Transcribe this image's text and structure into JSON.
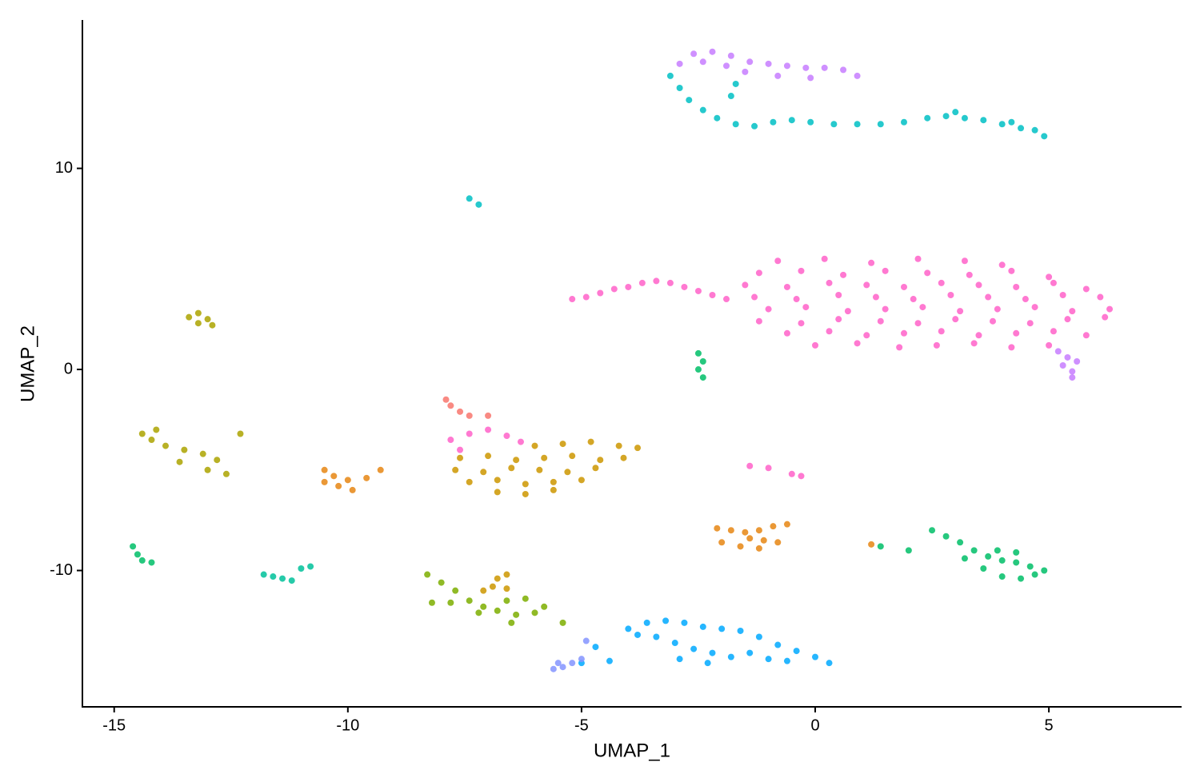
{
  "chart_data": {
    "type": "scatter",
    "x_label": "UMAP_1",
    "y_label": "UMAP_2",
    "xlim": [
      -15.68,
      7.84
    ],
    "ylim": [
      -16.78,
      17.38
    ],
    "xticks": [
      -15,
      -10,
      -5,
      0,
      5
    ],
    "yticks": [
      -10,
      0,
      10
    ],
    "grid": false,
    "series": [
      {
        "color": "#FF61C9",
        "x": [
          -5.2,
          -4.9,
          -4.6,
          -4.3,
          -4.0,
          -3.7,
          -3.4,
          -3.1,
          -2.8,
          -2.5,
          -2.2,
          -1.9,
          -0.8,
          0.2,
          1.2,
          2.2,
          3.2,
          4.0,
          -1.2,
          -0.3,
          0.6,
          1.5,
          2.4,
          3.3,
          4.2,
          5.0,
          -1.5,
          -0.6,
          0.3,
          1.1,
          1.9,
          2.7,
          3.5,
          4.3,
          5.1,
          5.8,
          -1.3,
          -0.4,
          0.5,
          1.3,
          2.1,
          2.9,
          3.7,
          4.5,
          5.3,
          6.1,
          -1.0,
          -0.2,
          0.7,
          1.5,
          2.3,
          3.1,
          3.9,
          4.7,
          5.5,
          6.3,
          -1.2,
          -0.3,
          0.5,
          1.4,
          2.2,
          3.0,
          3.8,
          4.6,
          5.4,
          6.2,
          -0.6,
          0.3,
          1.1,
          1.9,
          2.7,
          3.5,
          4.3,
          5.1,
          5.8,
          0.0,
          0.9,
          1.8,
          2.6,
          3.4,
          4.2,
          5.0,
          -7.8,
          -7.4,
          -7.0,
          -6.6,
          -6.3,
          -7.6,
          -1.4,
          -1.0,
          -0.5,
          -0.3
        ],
        "y": [
          3.5,
          3.6,
          3.8,
          4.0,
          4.1,
          4.3,
          4.4,
          4.3,
          4.1,
          3.9,
          3.7,
          3.5,
          5.4,
          5.5,
          5.3,
          5.5,
          5.4,
          5.2,
          4.8,
          4.9,
          4.7,
          4.9,
          4.8,
          4.7,
          4.9,
          4.6,
          4.2,
          4.1,
          4.3,
          4.2,
          4.1,
          4.3,
          4.2,
          4.1,
          4.3,
          4.0,
          3.6,
          3.5,
          3.7,
          3.6,
          3.5,
          3.7,
          3.6,
          3.5,
          3.7,
          3.6,
          3.0,
          3.1,
          2.9,
          3.0,
          3.1,
          2.9,
          3.0,
          3.1,
          2.9,
          3.0,
          2.4,
          2.3,
          2.5,
          2.4,
          2.3,
          2.5,
          2.4,
          2.3,
          2.5,
          2.6,
          1.8,
          1.9,
          1.7,
          1.8,
          1.9,
          1.7,
          1.8,
          1.9,
          1.7,
          1.2,
          1.3,
          1.1,
          1.2,
          1.3,
          1.1,
          1.2,
          -3.5,
          -3.2,
          -3.0,
          -3.3,
          -3.6,
          -4.0,
          -4.8,
          -4.9,
          -5.2,
          -5.3
        ]
      },
      {
        "color": "#C77CFF",
        "x": [
          -2.9,
          -2.6,
          -2.2,
          -1.8,
          -1.4,
          -1.0,
          -0.6,
          -0.2,
          0.2,
          0.6,
          0.9,
          -1.5,
          -0.8,
          -0.1,
          -2.4,
          -1.9,
          5.3,
          5.5,
          5.4,
          5.6,
          5.2,
          5.5
        ],
        "y": [
          15.2,
          15.7,
          15.8,
          15.6,
          15.3,
          15.2,
          15.1,
          15.0,
          15.0,
          14.9,
          14.6,
          14.8,
          14.6,
          14.5,
          15.3,
          15.1,
          0.2,
          -0.1,
          0.6,
          0.4,
          0.9,
          -0.4
        ]
      },
      {
        "color": "#00BFC4",
        "x": [
          -3.1,
          -2.9,
          -2.7,
          -2.4,
          -2.1,
          -1.7,
          -1.3,
          -0.9,
          -0.5,
          -0.1,
          0.4,
          0.9,
          1.4,
          1.9,
          2.4,
          2.8,
          3.2,
          3.6,
          4.0,
          4.4,
          4.7,
          4.9,
          3.0,
          4.2,
          -1.8,
          -1.7,
          -7.4,
          -7.2
        ],
        "y": [
          14.6,
          14.0,
          13.4,
          12.9,
          12.5,
          12.2,
          12.1,
          12.3,
          12.4,
          12.3,
          12.2,
          12.2,
          12.2,
          12.3,
          12.5,
          12.6,
          12.5,
          12.4,
          12.2,
          12.0,
          11.9,
          11.6,
          12.8,
          12.3,
          13.6,
          14.2,
          8.5,
          8.2
        ]
      },
      {
        "color": "#00A9FF",
        "x": [
          -4.0,
          -3.6,
          -3.2,
          -2.8,
          -2.4,
          -2.0,
          -1.6,
          -1.2,
          -0.8,
          -0.4,
          0.0,
          0.3,
          -3.4,
          -3.0,
          -2.6,
          -2.2,
          -1.8,
          -1.4,
          -1.0,
          -0.6,
          -3.8,
          -2.9,
          -2.3,
          -4.4,
          -5.0,
          -4.7
        ],
        "y": [
          -12.9,
          -12.6,
          -12.5,
          -12.6,
          -12.8,
          -12.9,
          -13.0,
          -13.3,
          -13.7,
          -14.0,
          -14.3,
          -14.6,
          -13.3,
          -13.6,
          -13.9,
          -14.1,
          -14.3,
          -14.1,
          -14.4,
          -14.5,
          -13.2,
          -14.4,
          -14.6,
          -14.5,
          -14.6,
          -13.8
        ]
      },
      {
        "color": "#8494FF",
        "x": [
          -5.6,
          -5.4,
          -5.2,
          -5.0,
          -5.5,
          -4.9
        ],
        "y": [
          -14.9,
          -14.8,
          -14.6,
          -14.4,
          -14.6,
          -13.5
        ]
      },
      {
        "color": "#E68613",
        "x": [
          -10.5,
          -10.3,
          -10.5,
          -10.2,
          -9.9,
          -10.0,
          -9.6,
          -9.3,
          -2.1,
          -1.8,
          -1.5,
          -1.2,
          -0.9,
          -0.6,
          -2.0,
          -1.6,
          -1.2,
          -0.8,
          -1.4,
          -1.1,
          1.2
        ],
        "y": [
          -5.0,
          -5.3,
          -5.6,
          -5.8,
          -6.0,
          -5.5,
          -5.4,
          -5.0,
          -7.9,
          -8.0,
          -8.1,
          -8.0,
          -7.8,
          -7.7,
          -8.6,
          -8.8,
          -8.9,
          -8.6,
          -8.4,
          -8.5,
          -8.7
        ]
      },
      {
        "color": "#CD9600",
        "x": [
          -6.0,
          -5.4,
          -4.8,
          -4.2,
          -3.8,
          -7.6,
          -7.0,
          -6.4,
          -5.8,
          -5.2,
          -4.6,
          -4.1,
          -7.7,
          -7.1,
          -6.5,
          -5.9,
          -5.3,
          -4.7,
          -7.4,
          -6.8,
          -6.2,
          -5.6,
          -5.0,
          -6.8,
          -6.2,
          -5.6,
          -6.8,
          -6.6,
          -6.9,
          -6.6,
          -7.1
        ],
        "y": [
          -3.8,
          -3.7,
          -3.6,
          -3.8,
          -3.9,
          -4.4,
          -4.3,
          -4.5,
          -4.4,
          -4.3,
          -4.5,
          -4.4,
          -5.0,
          -5.1,
          -4.9,
          -5.0,
          -5.1,
          -4.9,
          -5.6,
          -5.5,
          -5.7,
          -5.6,
          -5.5,
          -6.1,
          -6.2,
          -6.0,
          -10.4,
          -10.2,
          -10.8,
          -10.9,
          -11.0
        ]
      },
      {
        "color": "#ABA300",
        "x": [
          -13.4,
          -13.2,
          -13.0,
          -12.9,
          -13.2,
          -14.4,
          -14.2,
          -13.9,
          -13.5,
          -13.1,
          -12.8,
          -13.0,
          -12.6,
          -13.6,
          -14.1,
          -12.3
        ],
        "y": [
          2.6,
          2.8,
          2.5,
          2.2,
          2.3,
          -3.2,
          -3.5,
          -3.8,
          -4.0,
          -4.2,
          -4.5,
          -5.0,
          -5.2,
          -4.6,
          -3.0,
          -3.2
        ]
      },
      {
        "color": "#7CAE00",
        "x": [
          -8.3,
          -8.0,
          -7.7,
          -7.4,
          -8.2,
          -7.8,
          -7.1,
          -6.8,
          -6.4,
          -6.0,
          -5.8,
          -6.2,
          -6.6,
          -5.4,
          -7.2,
          -6.5
        ],
        "y": [
          -10.2,
          -10.6,
          -11.0,
          -11.5,
          -11.6,
          -11.6,
          -11.8,
          -12.0,
          -12.2,
          -12.1,
          -11.8,
          -11.4,
          -11.5,
          -12.6,
          -12.1,
          -12.6
        ]
      },
      {
        "color": "#00BE67",
        "x": [
          -2.5,
          -2.4,
          -2.5,
          -2.4,
          -14.6,
          -14.5,
          -14.4,
          -14.2,
          2.5,
          2.8,
          3.1,
          3.4,
          3.7,
          4.0,
          4.3,
          4.6,
          4.9,
          3.6,
          4.0,
          4.4,
          4.7,
          3.9,
          4.3,
          3.2,
          1.4,
          2.0
        ],
        "y": [
          0.8,
          0.4,
          0.0,
          -0.4,
          -8.8,
          -9.2,
          -9.5,
          -9.6,
          -8.0,
          -8.3,
          -8.6,
          -9.0,
          -9.3,
          -9.5,
          -9.6,
          -9.8,
          -10.0,
          -9.9,
          -10.3,
          -10.4,
          -10.2,
          -9.0,
          -9.1,
          -9.4,
          -8.8,
          -9.0
        ]
      },
      {
        "color": "#00C19A",
        "x": [
          -11.8,
          -11.6,
          -11.4,
          -11.2,
          -11.0,
          -10.8
        ],
        "y": [
          -10.2,
          -10.3,
          -10.4,
          -10.5,
          -9.9,
          -9.8
        ]
      },
      {
        "color": "#F8766D",
        "x": [
          -7.9,
          -7.8,
          -7.6,
          -7.4,
          -7.0
        ],
        "y": [
          -1.5,
          -1.8,
          -2.1,
          -2.3,
          -2.3
        ]
      }
    ]
  }
}
